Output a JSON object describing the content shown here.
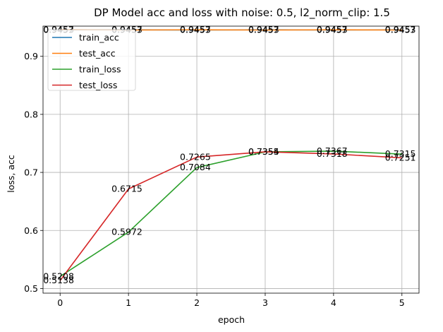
{
  "chart_data": {
    "type": "line",
    "title": "DP Model acc and loss with noise: 0.5, l2_norm_clip: 1.5",
    "xlabel": "epoch",
    "ylabel": "loss, acc",
    "x": [
      0,
      1,
      2,
      3,
      4,
      5
    ],
    "xlim": [
      -0.25,
      5.25
    ],
    "ylim": [
      0.492,
      0.952
    ],
    "xticks": [
      "0",
      "1",
      "2",
      "3",
      "4",
      "5"
    ],
    "yticks": [
      "0.5",
      "0.6",
      "0.7",
      "0.8",
      "0.9"
    ],
    "grid": true,
    "legend_position": "upper-left",
    "series": [
      {
        "name": "train_acc",
        "color": "#1f77b4",
        "values": [
          0.9453,
          0.9457,
          0.9453,
          0.9457,
          0.9453,
          0.9457
        ],
        "labels": [
          "0.9453",
          "0.9457",
          "0.9453",
          "0.9457",
          "0.9453",
          "0.9457"
        ]
      },
      {
        "name": "test_acc",
        "color": "#ff7f0e",
        "values": [
          0.9457,
          0.9453,
          0.9457,
          0.9453,
          0.9457,
          0.9453
        ],
        "labels": [
          "0.9457",
          "0.9453",
          "0.9457",
          "0.9453",
          "0.9457",
          "0.9453"
        ]
      },
      {
        "name": "train_loss",
        "color": "#2ca02c",
        "values": [
          0.5208,
          0.5972,
          0.7084,
          0.7354,
          0.7367,
          0.7315
        ],
        "labels": [
          "0.5208",
          "0.5972",
          "0.7084",
          "0.7354",
          "0.7367",
          "0.7315"
        ]
      },
      {
        "name": "test_loss",
        "color": "#d62728",
        "values": [
          0.5138,
          0.6715,
          0.7265,
          0.7355,
          0.7318,
          0.7251
        ],
        "labels": [
          "0.5138",
          "0.6715",
          "0.7265",
          "0.7355",
          "0.7318",
          "0.7251"
        ]
      }
    ]
  }
}
